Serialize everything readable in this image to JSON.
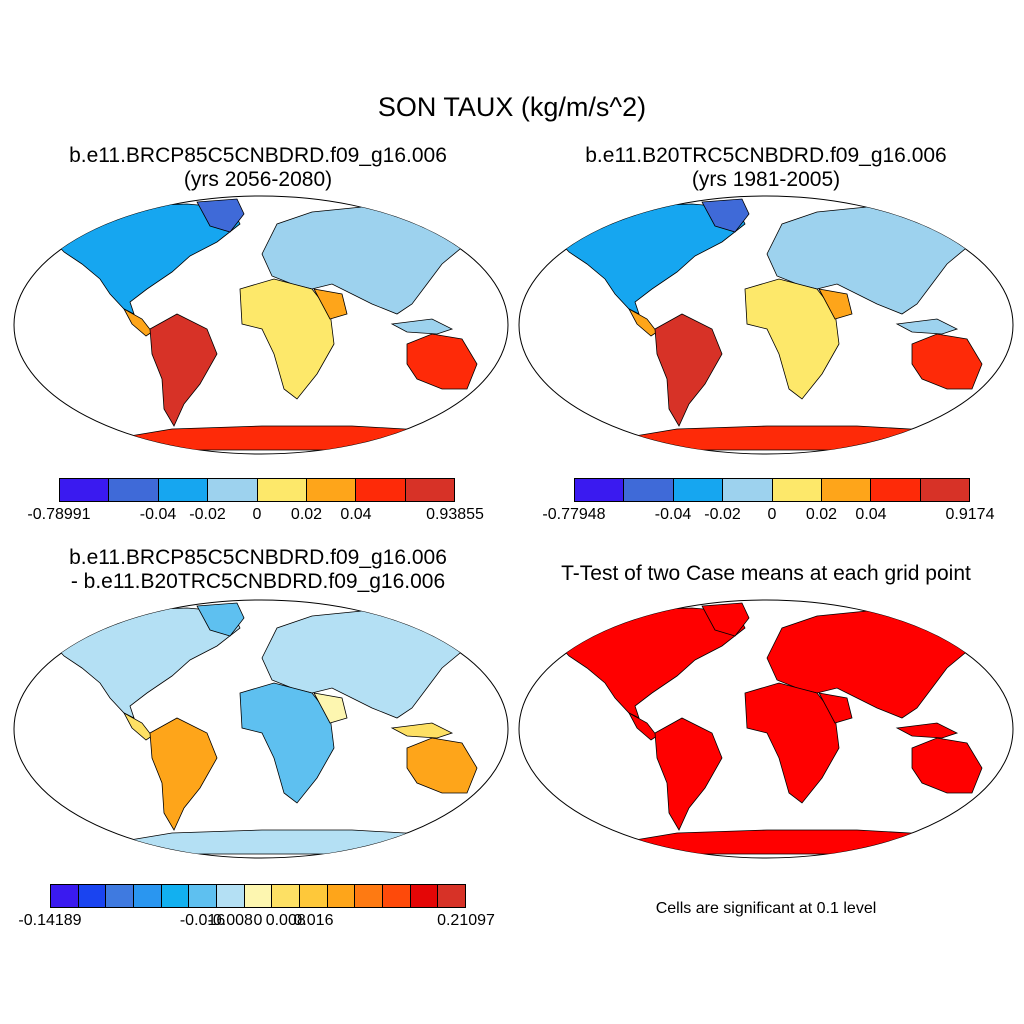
{
  "title": "SON TAUX (kg/m/s^2)",
  "panels": [
    {
      "title_line1": "b.e11.BRCP85C5CNBDRD.f09_g16.006",
      "title_line2": "(yrs 2056-2080)",
      "colorbar": {
        "colors": [
          "#3a1af0",
          "#3f6ad8",
          "#16a6f0",
          "#9dd2ee",
          "#fde86a",
          "#fea51a",
          "#fe2a08",
          "#d73227"
        ],
        "labels": [
          "-0.78991",
          "-0.04",
          "-0.02",
          "0",
          "0.02",
          "0.04",
          "0.93855"
        ]
      }
    },
    {
      "title_line1": "b.e11.B20TRC5CNBDRD.f09_g16.006",
      "title_line2": "(yrs 1981-2005)",
      "colorbar": {
        "colors": [
          "#3a1af0",
          "#3f6ad8",
          "#16a6f0",
          "#9dd2ee",
          "#fde86a",
          "#fea51a",
          "#fe2a08",
          "#d73227"
        ],
        "labels": [
          "-0.77948",
          "-0.04",
          "-0.02",
          "0",
          "0.02",
          "0.04",
          "0.9174"
        ]
      }
    },
    {
      "title_line1": "b.e11.BRCP85C5CNBDRD.f09_g16.006",
      "title_line2": "- b.e11.B20TRC5CNBDRD.f09_g16.006",
      "colorbar": {
        "colors": [
          "#3a1af0",
          "#1a44f0",
          "#3f7ae0",
          "#2a96f0",
          "#12b0f0",
          "#5ec0f0",
          "#b4e0f4",
          "#fdf6b0",
          "#fde064",
          "#fec83a",
          "#fea51a",
          "#fe7a12",
          "#fe4a0a",
          "#e40606",
          "#d73227"
        ],
        "labels": [
          "-0.14189",
          "-0.016",
          "-0.008",
          "0",
          "0.008",
          "0.016",
          "0.21097"
        ]
      }
    },
    {
      "title": "T-Test of two Case means at each grid point",
      "note": "Cells are significant at 0.1 level",
      "significance_color": "#ff0000"
    }
  ]
}
